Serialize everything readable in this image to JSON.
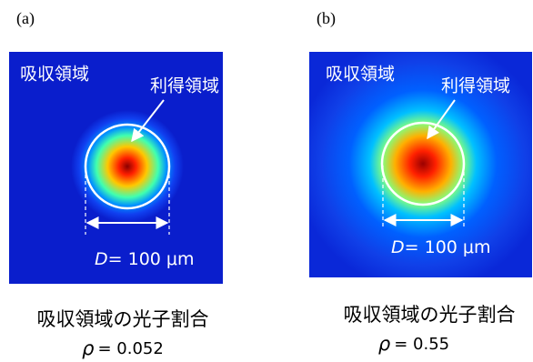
{
  "panels": [
    {
      "label": "(a)",
      "absorption_region": "吸収領域",
      "gain_region": "利得領域",
      "diameter_symbol": "D",
      "diameter_text": "= 100 μm",
      "caption": "吸収領域の光子割合",
      "rho_symbol": "ρ",
      "rho_text": "= 0.052"
    },
    {
      "label": "(b)",
      "absorption_region": "吸収領域",
      "gain_region": "利得領域",
      "diameter_symbol": "D",
      "diameter_text": "= 100 μm",
      "caption": "吸収領域の光子割合",
      "rho_symbol": "ρ",
      "rho_text": "= 0.55"
    }
  ]
}
